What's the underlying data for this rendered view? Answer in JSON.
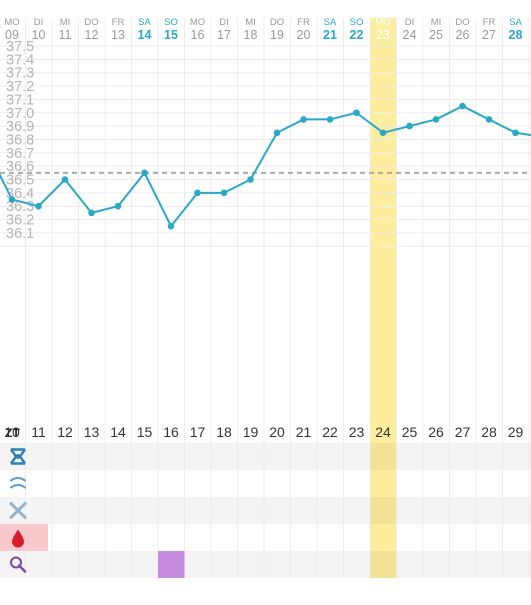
{
  "header": {
    "weekdays": [
      "MO",
      "DI",
      "MI",
      "DO",
      "FR",
      "SA",
      "SO",
      "MO",
      "DI",
      "MI",
      "DO",
      "FR",
      "SA",
      "SO",
      "MO",
      "DI",
      "MI",
      "DO",
      "FR",
      "SA"
    ],
    "dates": [
      "09",
      "10",
      "11",
      "12",
      "13",
      "14",
      "15",
      "16",
      "17",
      "18",
      "19",
      "20",
      "21",
      "22",
      "23",
      "24",
      "25",
      "26",
      "27",
      "28"
    ],
    "weekend": [
      false,
      false,
      false,
      false,
      false,
      true,
      true,
      false,
      false,
      false,
      false,
      false,
      true,
      true,
      false,
      false,
      false,
      false,
      false,
      true
    ],
    "highlight_index": 14
  },
  "cycle_days": {
    "corner_label": "ZT",
    "values": [
      "10",
      "11",
      "12",
      "13",
      "14",
      "15",
      "16",
      "17",
      "18",
      "19",
      "20",
      "21",
      "22",
      "23",
      "24",
      "25",
      "26",
      "27",
      "28",
      "29"
    ]
  },
  "chart_data": {
    "type": "line",
    "title": "",
    "xlabel": "",
    "ylabel": "",
    "x": [
      10,
      11,
      12,
      13,
      14,
      15,
      16,
      17,
      18,
      19,
      20,
      21,
      22,
      23,
      24,
      25,
      26,
      27,
      28,
      29,
      30
    ],
    "y": [
      36.35,
      36.3,
      36.5,
      36.25,
      36.3,
      36.55,
      36.15,
      36.4,
      36.4,
      36.5,
      36.85,
      36.95,
      36.95,
      37.0,
      36.85,
      36.9,
      36.95,
      37.05,
      36.95,
      36.85,
      36.82
    ],
    "y_ticks": [
      "37.5",
      "37.4",
      "37.3",
      "37.2",
      "37.1",
      "37.0",
      "36.9",
      "36.8",
      "36.7",
      "36.6",
      "36.5",
      "36.4",
      "36.3",
      "36.2",
      "36.1"
    ],
    "ylim": [
      36.0,
      37.5
    ],
    "coverline": 36.55,
    "grid": true
  },
  "symbol_rows": [
    {
      "icon": "cervix-icon",
      "marked_days": []
    },
    {
      "icon": "mucus-icon",
      "marked_days": []
    },
    {
      "icon": "sex-icon",
      "marked_days": []
    },
    {
      "icon": "bleeding-drop-icon",
      "marked_days": []
    },
    {
      "icon": "ovulation-test-icon",
      "marked_days": [
        "16"
      ]
    }
  ],
  "colors": {
    "line": "#2aa8c8",
    "highlight": "#fcee9c",
    "weekend_blue": "#2aa8c8",
    "grid": "#ececec",
    "text_gray": "#9a9a9a",
    "coverline": "#aaaaaa",
    "ovulation_mark": "#c58ce0",
    "bleeding_bg": "#f8c8cc"
  }
}
